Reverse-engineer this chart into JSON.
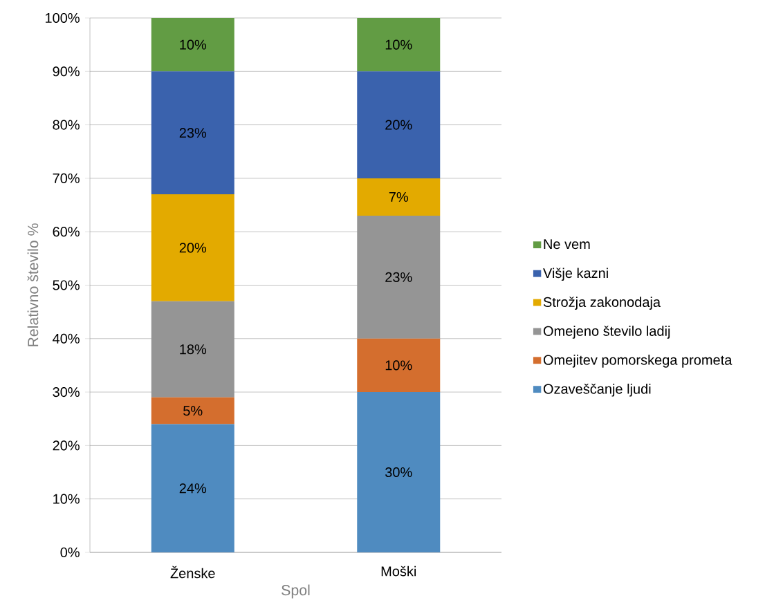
{
  "chart_data": {
    "type": "bar",
    "stacked": true,
    "xlabel": "Spol",
    "ylabel": "Relativno število %",
    "categories": [
      "Ženske",
      "Moški"
    ],
    "series": [
      {
        "name": "Ozaveščanje ljudi",
        "color": "#4f8bc0",
        "values": [
          24,
          30
        ],
        "value_labels": [
          "24%",
          "30%"
        ]
      },
      {
        "name": "Omejitev pomorskega prometa",
        "color": "#d46e2e",
        "values": [
          5,
          10
        ],
        "value_labels": [
          "5%",
          "10%"
        ]
      },
      {
        "name": "Omejeno število ladij",
        "color": "#959595",
        "values": [
          18,
          23
        ],
        "value_labels": [
          "18%",
          "23%"
        ]
      },
      {
        "name": "Strožja zakonodaja",
        "color": "#e3aa00",
        "values": [
          20,
          7
        ],
        "value_labels": [
          "20%",
          "7%"
        ]
      },
      {
        "name": "Višje kazni",
        "color": "#3a62ad",
        "values": [
          23,
          20
        ],
        "value_labels": [
          "23%",
          "20%"
        ]
      },
      {
        "name": "Ne vem",
        "color": "#629c44",
        "values": [
          10,
          10
        ],
        "value_labels": [
          "10%",
          "10%"
        ]
      }
    ],
    "ylim": [
      0,
      100
    ],
    "yticks": [
      {
        "value": 0,
        "label": "0%"
      },
      {
        "value": 10,
        "label": "10%"
      },
      {
        "value": 20,
        "label": "20%"
      },
      {
        "value": 30,
        "label": "30%"
      },
      {
        "value": 40,
        "label": "40%"
      },
      {
        "value": 50,
        "label": "50%"
      },
      {
        "value": 60,
        "label": "60%"
      },
      {
        "value": 70,
        "label": "70%"
      },
      {
        "value": 80,
        "label": "80%"
      },
      {
        "value": 90,
        "label": "90%"
      },
      {
        "value": 100,
        "label": "100%"
      }
    ],
    "grid": "y",
    "legend": "right"
  }
}
